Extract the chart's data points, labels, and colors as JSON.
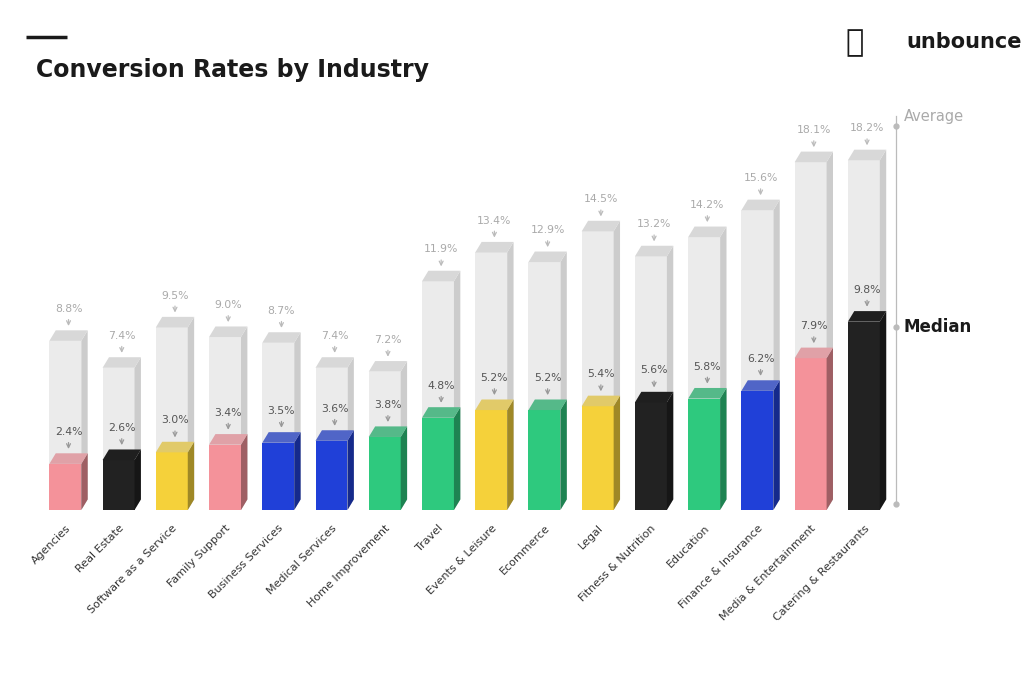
{
  "categories": [
    "Agencies",
    "Real Estate",
    "Software as a Service",
    "Family Support",
    "Business Services",
    "Medical Services",
    "Home Improvement",
    "Travel",
    "Events & Leisure",
    "Ecommerce",
    "Legal",
    "Fitness & Nutrition",
    "Education",
    "Finance & Insurance",
    "Media & Entertainment",
    "Catering & Restaurants"
  ],
  "median_values": [
    2.4,
    2.6,
    3.0,
    3.4,
    3.5,
    3.6,
    3.8,
    4.8,
    5.2,
    5.2,
    5.4,
    5.6,
    5.8,
    6.2,
    7.9,
    9.8
  ],
  "average_values": [
    8.8,
    7.4,
    9.5,
    9.0,
    8.7,
    7.4,
    7.2,
    11.9,
    13.4,
    12.9,
    14.5,
    13.2,
    14.2,
    15.6,
    18.1,
    18.2
  ],
  "bar_colors": [
    "#F4929A",
    "#222222",
    "#F5D13A",
    "#F4929A",
    "#2040D8",
    "#2040D8",
    "#2EC97E",
    "#2EC97E",
    "#F5D13A",
    "#2EC97E",
    "#F5D13A",
    "#222222",
    "#2EC97E",
    "#2040D8",
    "#F4929A",
    "#222222"
  ],
  "title": "Conversion Rates by Industry",
  "bg_color": "#FFFFFF",
  "avg_bar_color": "#EBEBEB",
  "avg_text_color": "#AAAAAA",
  "median_text_color": "#555555",
  "arrow_color": "#BBBBBB"
}
